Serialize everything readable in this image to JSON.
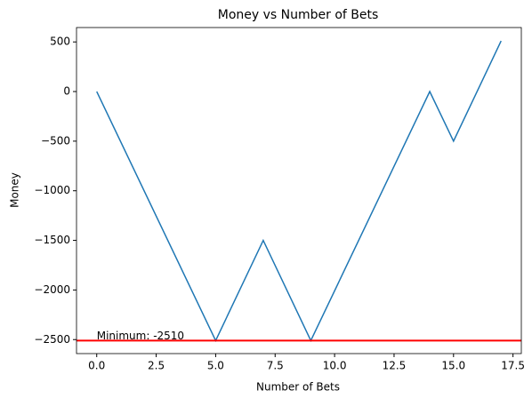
{
  "chart_data": {
    "type": "line",
    "title": "Money vs Number of Bets",
    "xlabel": "Number of Bets",
    "ylabel": "Money",
    "x": [
      0,
      5,
      7,
      9,
      14,
      15,
      17
    ],
    "series": [
      {
        "name": "Money",
        "color": "#1f77b4",
        "values": [
          0,
          -2510,
          -1500,
          -2510,
          0,
          -500,
          510
        ]
      }
    ],
    "xlim": [
      -0.85,
      17.85
    ],
    "ylim": [
      -2641,
      645
    ],
    "xticks": [
      {
        "value": 0,
        "label": "0.0"
      },
      {
        "value": 2.5,
        "label": "2.5"
      },
      {
        "value": 5,
        "label": "5.0"
      },
      {
        "value": 7.5,
        "label": "7.5"
      },
      {
        "value": 10,
        "label": "10.0"
      },
      {
        "value": 12.5,
        "label": "12.5"
      },
      {
        "value": 15,
        "label": "15.0"
      },
      {
        "value": 17.5,
        "label": "17.5"
      }
    ],
    "yticks": [
      {
        "value": -2500,
        "label": "−2500"
      },
      {
        "value": -2000,
        "label": "−2000"
      },
      {
        "value": -1500,
        "label": "−1500"
      },
      {
        "value": -1000,
        "label": "−1000"
      },
      {
        "value": -500,
        "label": "−500"
      },
      0,
      500
    ],
    "hline": {
      "value": -2510,
      "color": "red",
      "label": "Minimum: -2510"
    },
    "grid": false
  }
}
